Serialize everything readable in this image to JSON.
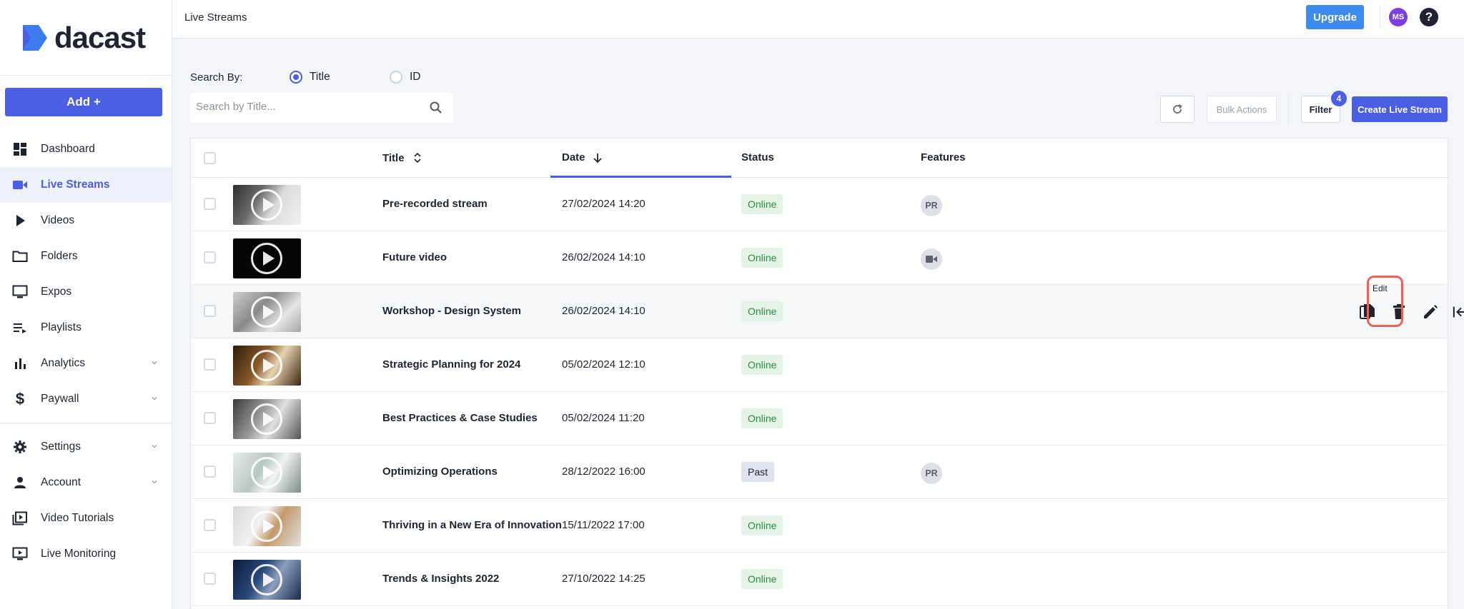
{
  "brand": {
    "name": "dacast"
  },
  "sidebar": {
    "add_label": "Add +",
    "items": [
      {
        "label": "Dashboard",
        "icon": "dashboard-icon"
      },
      {
        "label": "Live Streams",
        "icon": "video-camera-icon"
      },
      {
        "label": "Videos",
        "icon": "play-icon"
      },
      {
        "label": "Folders",
        "icon": "folder-icon"
      },
      {
        "label": "Expos",
        "icon": "monitor-icon"
      },
      {
        "label": "Playlists",
        "icon": "playlist-icon"
      },
      {
        "label": "Analytics",
        "icon": "bar-chart-icon"
      },
      {
        "label": "Paywall",
        "icon": "dollar-icon"
      },
      {
        "label": "Settings",
        "icon": "gear-icon"
      },
      {
        "label": "Account",
        "icon": "person-icon"
      },
      {
        "label": "Video Tutorials",
        "icon": "video-library-icon"
      },
      {
        "label": "Live Monitoring",
        "icon": "monitor-play-icon"
      }
    ]
  },
  "header": {
    "title": "Live Streams",
    "upgrade_label": "Upgrade",
    "avatar_initials": "MS",
    "help_label": "?"
  },
  "search": {
    "by_label": "Search By:",
    "option_title": "Title",
    "option_id": "ID",
    "placeholder": "Search by Title...",
    "value": ""
  },
  "toolbar": {
    "bulk_label": "Bulk Actions",
    "filter_label": "Filter",
    "filter_count": "4",
    "create_label": "Create Live Stream"
  },
  "table": {
    "columns": {
      "title": "Title",
      "date": "Date",
      "status": "Status",
      "features": "Features"
    },
    "rows": [
      {
        "title": "Pre-recorded stream",
        "date": "27/02/2024 14:20",
        "status": "Online",
        "feature": "PR"
      },
      {
        "title": "Future video",
        "date": "26/02/2024 14:10",
        "status": "Online",
        "feature": ""
      },
      {
        "title": "Workshop - Design System",
        "date": "26/02/2024 14:10",
        "status": "Online",
        "feature": ""
      },
      {
        "title": "Strategic Planning for 2024",
        "date": "05/02/2024 12:10",
        "status": "Online",
        "feature": ""
      },
      {
        "title": "Best Practices & Case Studies",
        "date": "05/02/2024 11:20",
        "status": "Online",
        "feature": ""
      },
      {
        "title": "Optimizing Operations",
        "date": "28/12/2022 16:00",
        "status": "Past",
        "feature": "PR"
      },
      {
        "title": "Thriving in a New Era of Innovation",
        "date": "15/11/2022 17:00",
        "status": "Online",
        "feature": ""
      },
      {
        "title": "Trends & Insights 2022",
        "date": "27/10/2022 14:25",
        "status": "Online",
        "feature": ""
      }
    ]
  },
  "row_actions": {
    "tooltip": "Edit"
  }
}
